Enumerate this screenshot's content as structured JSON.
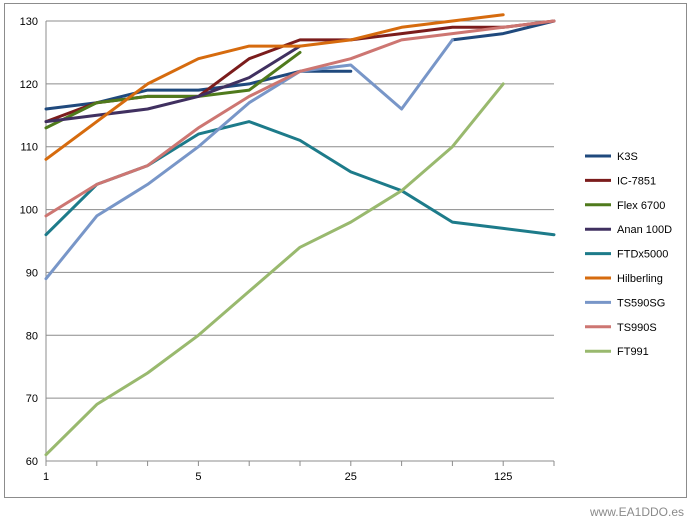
{
  "chart_data": {
    "type": "line",
    "x": [
      "1",
      "",
      "",
      "5",
      "",
      "",
      "25",
      "",
      "",
      "125",
      ""
    ],
    "ylim": [
      60,
      130
    ],
    "yticks": [
      60,
      70,
      80,
      90,
      100,
      110,
      120,
      130
    ],
    "grid": "horizontal",
    "legend_position": "right",
    "series": [
      {
        "name": "K3S",
        "color": "#1f497d",
        "values": [
          116,
          117,
          119,
          119,
          120,
          122,
          122,
          null,
          127,
          128,
          130
        ]
      },
      {
        "name": "IC-7851",
        "color": "#7b1c1c",
        "values": [
          114,
          117,
          118,
          118,
          124,
          127,
          127,
          128,
          129,
          129,
          130
        ]
      },
      {
        "name": "Flex 6700",
        "color": "#4f7a1c",
        "values": [
          113,
          117,
          118,
          118,
          119,
          125,
          null,
          null,
          null,
          null,
          null
        ]
      },
      {
        "name": "Anan 100D",
        "color": "#403060",
        "values": [
          114,
          115,
          116,
          118,
          121,
          126,
          null,
          null,
          null,
          null,
          null
        ]
      },
      {
        "name": "FTDx5000",
        "color": "#1d7b8a",
        "values": [
          96,
          104,
          107,
          112,
          114,
          111,
          106,
          103,
          98,
          97,
          96
        ]
      },
      {
        "name": "Hilberling",
        "color": "#d66b0e",
        "values": [
          108,
          114,
          120,
          124,
          126,
          126,
          127,
          129,
          130,
          131,
          null
        ]
      },
      {
        "name": "TS590SG",
        "color": "#7896c8",
        "values": [
          89,
          99,
          104,
          110,
          117,
          122,
          123,
          116,
          127,
          null,
          null
        ]
      },
      {
        "name": "TS990S",
        "color": "#cd7672",
        "values": [
          99,
          104,
          107,
          113,
          118,
          122,
          124,
          127,
          128,
          129,
          130
        ]
      },
      {
        "name": "FT991",
        "color": "#99b96e",
        "values": [
          61,
          69,
          74,
          80,
          87,
          94,
          98,
          103,
          110,
          120,
          null
        ]
      }
    ]
  },
  "watermark": "www.EA1DDO.es"
}
